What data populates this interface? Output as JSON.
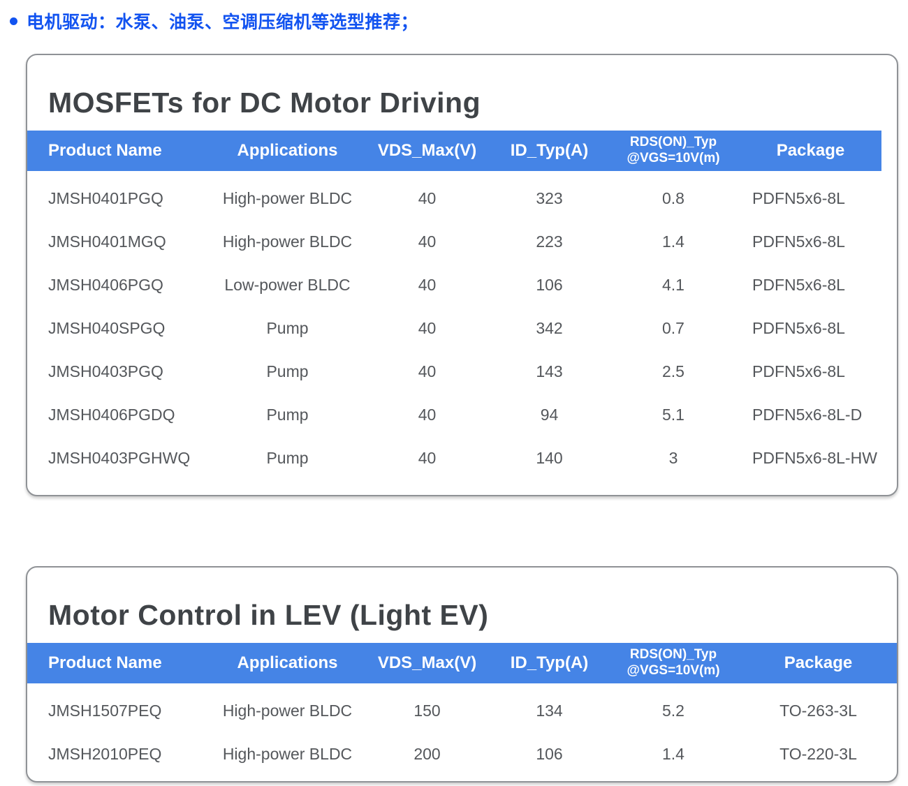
{
  "heading": {
    "text": "电机驱动：水泵、油泵、空调压缩机等选型推荐；"
  },
  "colors": {
    "accent_blue": "#4584e6",
    "heading_blue": "#1253f0"
  },
  "tables": [
    {
      "title": "MOSFETs for DC Motor Driving",
      "columns": [
        "Product Name",
        "Applications",
        "VDS_Max(V)",
        "ID_Typ(A)",
        "RDS(ON)_Typ\n@VGS=10V(m)",
        "Package"
      ],
      "rows": [
        [
          "JMSH0401PGQ",
          "High-power BLDC",
          "40",
          "323",
          "0.8",
          "PDFN5x6-8L"
        ],
        [
          "JMSH0401MGQ",
          "High-power BLDC",
          "40",
          "223",
          "1.4",
          "PDFN5x6-8L"
        ],
        [
          "JMSH0406PGQ",
          "Low-power BLDC",
          "40",
          "106",
          "4.1",
          "PDFN5x6-8L"
        ],
        [
          "JMSH040SPGQ",
          "Pump",
          "40",
          "342",
          "0.7",
          "PDFN5x6-8L"
        ],
        [
          "JMSH0403PGQ",
          "Pump",
          "40",
          "143",
          "2.5",
          "PDFN5x6-8L"
        ],
        [
          "JMSH0406PGDQ",
          "Pump",
          "40",
          "94",
          "5.1",
          "PDFN5x6-8L-D"
        ],
        [
          "JMSH0403PGHWQ",
          "Pump",
          "40",
          "140",
          "3",
          "PDFN5x6-8L-HW"
        ]
      ]
    },
    {
      "title": "Motor Control in LEV (Light EV)",
      "columns": [
        "Product Name",
        "Applications",
        "VDS_Max(V)",
        "ID_Typ(A)",
        "RDS(ON)_Typ\n@VGS=10V(m)",
        "Package"
      ],
      "rows": [
        [
          "JMSH1507PEQ",
          "High-power BLDC",
          "150",
          "134",
          "5.2",
          "TO-263-3L"
        ],
        [
          "JMSH2010PEQ",
          "High-power BLDC",
          "200",
          "106",
          "1.4",
          "TO-220-3L"
        ]
      ]
    }
  ],
  "cell_names": [
    "product-name-cell",
    "applications-cell",
    "vds-max-cell",
    "id-typ-cell",
    "rds-on-cell",
    "package-cell"
  ]
}
